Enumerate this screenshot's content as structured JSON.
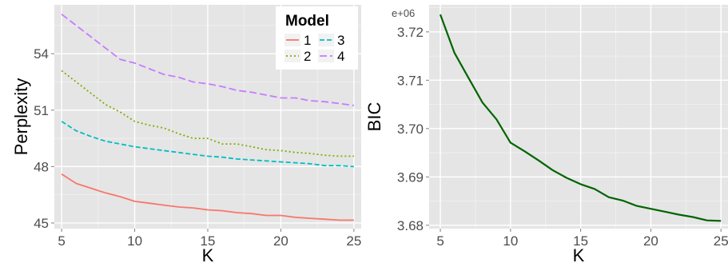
{
  "chart_data": [
    {
      "type": "line",
      "xlabel": "K",
      "ylabel": "Perplexity",
      "x": [
        5,
        6,
        7,
        8,
        9,
        10,
        11,
        12,
        13,
        14,
        15,
        16,
        17,
        18,
        19,
        20,
        21,
        22,
        23,
        24,
        25
      ],
      "xlim": [
        4.5,
        25.5
      ],
      "ylim": [
        44.7,
        56.6
      ],
      "xticks": [
        "5",
        "10",
        "15",
        "20",
        "25"
      ],
      "yticks": [
        "45",
        "48",
        "51",
        "54"
      ],
      "grid": true,
      "legend": {
        "title": "Model",
        "position": "top-right"
      },
      "series": [
        {
          "name": "1",
          "color": "#F8766D",
          "dash": "solid",
          "values": [
            47.6,
            47.1,
            46.85,
            46.6,
            46.4,
            46.15,
            46.05,
            45.95,
            45.85,
            45.8,
            45.7,
            45.65,
            45.55,
            45.5,
            45.4,
            45.4,
            45.3,
            45.25,
            45.2,
            45.15,
            45.15
          ]
        },
        {
          "name": "2",
          "color": "#7CAE00",
          "dash": "dotted",
          "values": [
            53.1,
            52.5,
            51.9,
            51.3,
            50.9,
            50.4,
            50.2,
            50.05,
            49.75,
            49.5,
            49.5,
            49.2,
            49.2,
            49.05,
            48.9,
            48.85,
            48.75,
            48.7,
            48.6,
            48.55,
            48.55
          ]
        },
        {
          "name": "3",
          "color": "#00BFC4",
          "dash": "dashed",
          "values": [
            50.4,
            49.9,
            49.6,
            49.35,
            49.2,
            49.05,
            48.95,
            48.85,
            48.75,
            48.65,
            48.55,
            48.5,
            48.4,
            48.35,
            48.3,
            48.25,
            48.2,
            48.15,
            48.05,
            48.05,
            48.0
          ]
        },
        {
          "name": "4",
          "color": "#C77CFF",
          "dash": "longdash",
          "values": [
            56.1,
            55.5,
            54.9,
            54.3,
            53.7,
            53.5,
            53.2,
            52.9,
            52.75,
            52.5,
            52.4,
            52.25,
            52.05,
            51.95,
            51.8,
            51.65,
            51.65,
            51.5,
            51.45,
            51.35,
            51.25
          ]
        }
      ]
    },
    {
      "type": "line",
      "xlabel": "K",
      "ylabel": "BIC",
      "exponent_label": "e+06",
      "x": [
        5,
        6,
        7,
        8,
        9,
        10,
        11,
        12,
        13,
        14,
        15,
        16,
        17,
        18,
        19,
        20,
        21,
        22,
        23,
        24,
        25
      ],
      "xlim": [
        4.2,
        25.5
      ],
      "ylim": [
        3.6793,
        3.7256
      ],
      "xticks": [
        "5",
        "10",
        "15",
        "20",
        "25"
      ],
      "yticks": [
        "3.68",
        "3.69",
        "3.70",
        "3.71",
        "3.72"
      ],
      "grid": true,
      "series": [
        {
          "color": "#006400",
          "dash": "solid",
          "values": [
            3.7236,
            3.7157,
            3.7105,
            3.7054,
            3.7019,
            3.6971,
            3.6953,
            3.6934,
            3.6914,
            3.6898,
            3.6885,
            3.6875,
            3.6858,
            3.6851,
            3.684,
            3.6834,
            3.6828,
            3.6822,
            3.6817,
            3.681,
            3.6809
          ]
        }
      ]
    }
  ]
}
